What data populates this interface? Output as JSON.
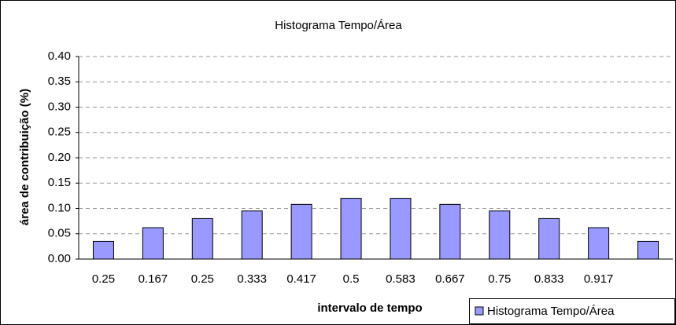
{
  "chart_data": {
    "type": "bar",
    "title": "Histograma Tempo/Área",
    "x_label": "intervalo de tempo",
    "y_label": "área de contribuição (%)",
    "categories": [
      "0.25",
      "0.167",
      "0.25",
      "0.333",
      "0.417",
      "0.5",
      "0.583",
      "0.667",
      "0.75",
      "0.833",
      "0.917",
      null
    ],
    "series": [
      {
        "name": "Histograma Tempo/Área",
        "color": "#9999ff",
        "values": [
          0.035,
          0.062,
          0.08,
          0.095,
          0.108,
          0.12,
          0.12,
          0.108,
          0.095,
          0.08,
          0.062,
          0.035
        ]
      }
    ],
    "ylim": [
      0,
      0.4
    ],
    "yticks": [
      {
        "value": 0,
        "label": "0.00"
      },
      0.05,
      {
        "value": 0.1,
        "label": "0.10"
      },
      0.15,
      {
        "value": 0.2,
        "label": "0.20"
      },
      0.25,
      {
        "value": 0.3,
        "label": "0.30"
      },
      0.35,
      {
        "value": 0.4,
        "label": "0.40"
      }
    ],
    "grid": true,
    "legend": "bottom-right"
  }
}
